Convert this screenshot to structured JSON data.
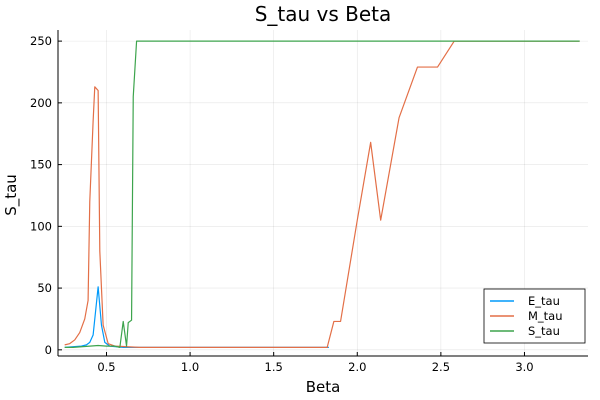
{
  "chart_data": {
    "type": "line",
    "title": "S_tau vs Beta",
    "xlabel": "Beta",
    "ylabel": "S_tau",
    "xlim": [
      0.21,
      3.38
    ],
    "ylim": [
      -5,
      259
    ],
    "xticks": [
      0.5,
      1.0,
      1.5,
      2.0,
      2.5,
      3.0
    ],
    "xtick_labels": [
      "0.5",
      "1.0",
      "1.5",
      "2.0",
      "2.5",
      "3.0"
    ],
    "yticks": [
      0,
      50,
      100,
      150,
      200,
      250
    ],
    "ytick_labels": [
      "0",
      "50",
      "100",
      "150",
      "200",
      "250"
    ],
    "grid": true,
    "legend_position": "bottom-right",
    "series": [
      {
        "name": "E_tau",
        "color": "#009AFA",
        "points": [
          [
            0.25,
            2
          ],
          [
            0.3,
            2.5
          ],
          [
            0.35,
            3
          ],
          [
            0.38,
            4
          ],
          [
            0.4,
            6
          ],
          [
            0.42,
            12
          ],
          [
            0.45,
            51
          ],
          [
            0.47,
            20
          ],
          [
            0.49,
            6
          ],
          [
            0.52,
            3
          ],
          [
            0.6,
            2
          ],
          [
            0.7,
            2
          ],
          [
            1.0,
            2
          ],
          [
            1.5,
            2
          ],
          [
            1.8,
            2
          ],
          [
            1.83,
            2
          ]
        ]
      },
      {
        "name": "M_tau",
        "color": "#E36F47",
        "points": [
          [
            0.25,
            4
          ],
          [
            0.28,
            5
          ],
          [
            0.31,
            8
          ],
          [
            0.34,
            14
          ],
          [
            0.37,
            25
          ],
          [
            0.39,
            40
          ],
          [
            0.4,
            120
          ],
          [
            0.42,
            185
          ],
          [
            0.43,
            213
          ],
          [
            0.45,
            210
          ],
          [
            0.46,
            80
          ],
          [
            0.48,
            20
          ],
          [
            0.51,
            5
          ],
          [
            0.55,
            3
          ],
          [
            0.7,
            2
          ],
          [
            1.0,
            2
          ],
          [
            1.5,
            2
          ],
          [
            1.82,
            2
          ],
          [
            1.86,
            23
          ],
          [
            1.9,
            23
          ],
          [
            2.0,
            105
          ],
          [
            2.08,
            168
          ],
          [
            2.14,
            105
          ],
          [
            2.25,
            188
          ],
          [
            2.36,
            229
          ],
          [
            2.48,
            229
          ],
          [
            2.58,
            250
          ],
          [
            3.0,
            250
          ],
          [
            3.33,
            250
          ]
        ]
      },
      {
        "name": "S_tau",
        "color": "#3DA44D",
        "points": [
          [
            0.25,
            2
          ],
          [
            0.3,
            2
          ],
          [
            0.35,
            2.5
          ],
          [
            0.4,
            3
          ],
          [
            0.45,
            3.5
          ],
          [
            0.5,
            3
          ],
          [
            0.55,
            3
          ],
          [
            0.58,
            2
          ],
          [
            0.6,
            23
          ],
          [
            0.62,
            3
          ],
          [
            0.63,
            22
          ],
          [
            0.65,
            24
          ],
          [
            0.66,
            205
          ],
          [
            0.68,
            250
          ],
          [
            1.0,
            250
          ],
          [
            2.0,
            250
          ],
          [
            3.0,
            250
          ],
          [
            3.33,
            250
          ]
        ]
      }
    ]
  }
}
